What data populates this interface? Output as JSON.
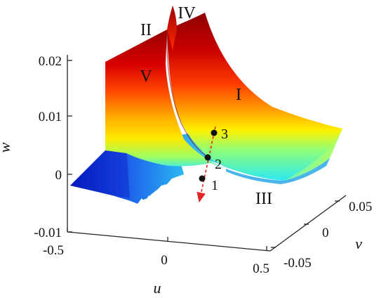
{
  "axes": {
    "w_label": "w",
    "u_label": "u",
    "v_label": "v",
    "w_ticks": [
      "0.02",
      "0.01",
      "0",
      "-0.01"
    ],
    "u_ticks": [
      "-0.5",
      "0",
      "0.5"
    ],
    "v_ticks": [
      "0.05",
      "0",
      "-0.05"
    ]
  },
  "regions": [
    "I",
    "II",
    "III",
    "IV",
    "V"
  ],
  "points": [
    "1",
    "2",
    "3"
  ],
  "colors": {
    "surface_high": "#9a0000",
    "surface_mid": "#ffd000",
    "surface_cyan": "#3ff0f0",
    "surface_low": "#0020c8",
    "trajectory": "#e32626"
  }
}
